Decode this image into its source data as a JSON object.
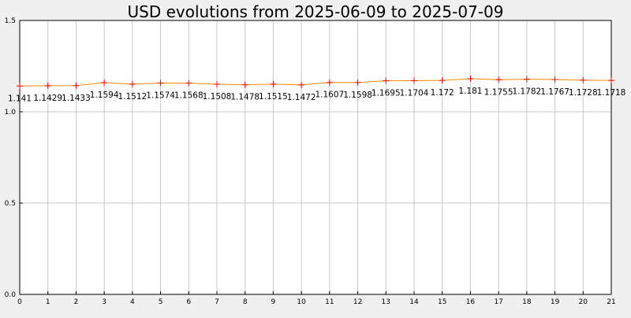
{
  "chart_data": {
    "type": "line",
    "title": "USD evolutions from 2025-06-09 to 2025-07-09",
    "xlabel": "",
    "ylabel": "",
    "x": [
      0,
      1,
      2,
      3,
      4,
      5,
      6,
      7,
      8,
      9,
      10,
      11,
      12,
      13,
      14,
      15,
      16,
      17,
      18,
      19,
      20,
      21
    ],
    "xlim": [
      0,
      21
    ],
    "ylim": [
      0,
      1.5
    ],
    "x_ticks": [
      "0",
      "1",
      "2",
      "3",
      "4",
      "5",
      "6",
      "7",
      "8",
      "9",
      "10",
      "11",
      "12",
      "13",
      "14",
      "15",
      "16",
      "17",
      "18",
      "19",
      "20",
      "21"
    ],
    "y_ticks": [
      "0.0",
      "0.5",
      "1.0",
      "1.5"
    ],
    "grid": true,
    "series": [
      {
        "values": [
          1.141,
          1.1429,
          1.1433,
          1.1594,
          1.1512,
          1.1574,
          1.1568,
          1.1508,
          1.1478,
          1.1515,
          1.1472,
          1.1607,
          1.1598,
          1.1695,
          1.1704,
          1.172,
          1.181,
          1.1755,
          1.1782,
          1.1767,
          1.1728,
          1.1718
        ],
        "labels": [
          "1.141",
          "1.1429",
          "1.1433",
          "1.1594",
          "1.1512",
          "1.1574",
          "1.1568",
          "1.1508",
          "1.1478",
          "1.1515",
          "1.1472",
          "1.1607",
          "1.1598",
          "1.1695",
          "1.1704",
          "1.172",
          "1.181",
          "1.1755",
          "1.1782",
          "1.1767",
          "1.1728",
          "1.1718"
        ],
        "line_color": "#ff8c00",
        "marker_color": "#ff0000",
        "marker": "+"
      }
    ],
    "colors": {
      "background": "#f0f0f0",
      "plot_background": "#ffffff",
      "grid": "#c8c8c8",
      "text": "#000000"
    }
  }
}
